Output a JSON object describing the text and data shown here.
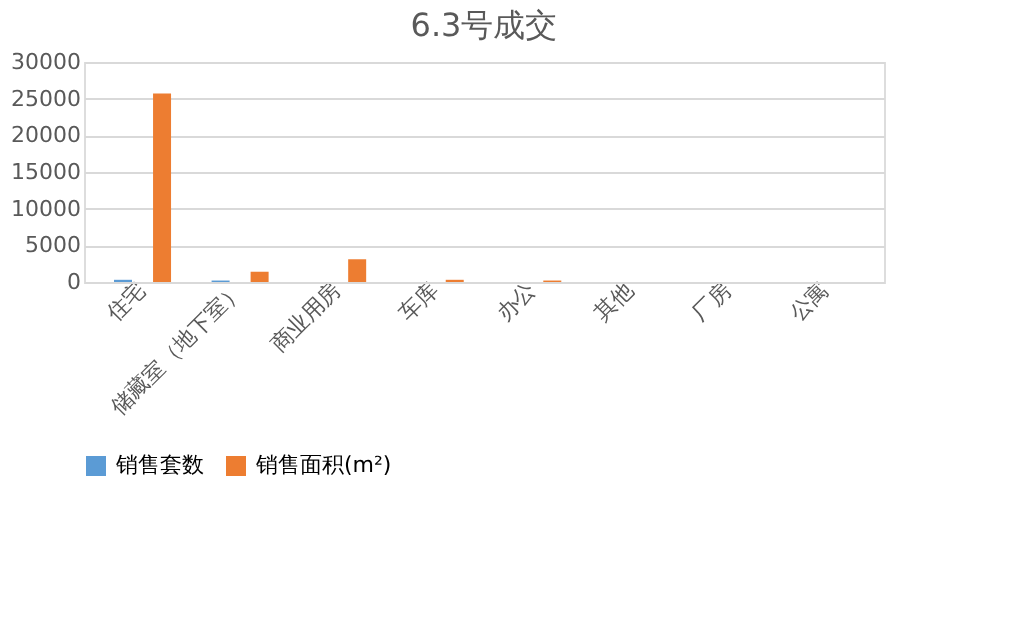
{
  "chart_data": {
    "type": "bar",
    "title": "6.3号成交",
    "categories": [
      "住宅",
      "储藏室（地下室）",
      "商业用房",
      "车库",
      "办公",
      "其他",
      "厂房",
      "公寓"
    ],
    "series": [
      {
        "name": "销售套数",
        "color": "#5b9bd5",
        "values": [
          300,
          200,
          0,
          0,
          0,
          0,
          0,
          0
        ]
      },
      {
        "name": "销售面积(m²)",
        "color": "#ed7d31",
        "values": [
          25700,
          1400,
          3100,
          300,
          200,
          0,
          0,
          0
        ]
      }
    ],
    "ylim": [
      0,
      30000
    ],
    "yticks": [
      0,
      5000,
      10000,
      15000,
      20000,
      25000,
      30000
    ],
    "grid": "y",
    "legend": "bottom"
  }
}
